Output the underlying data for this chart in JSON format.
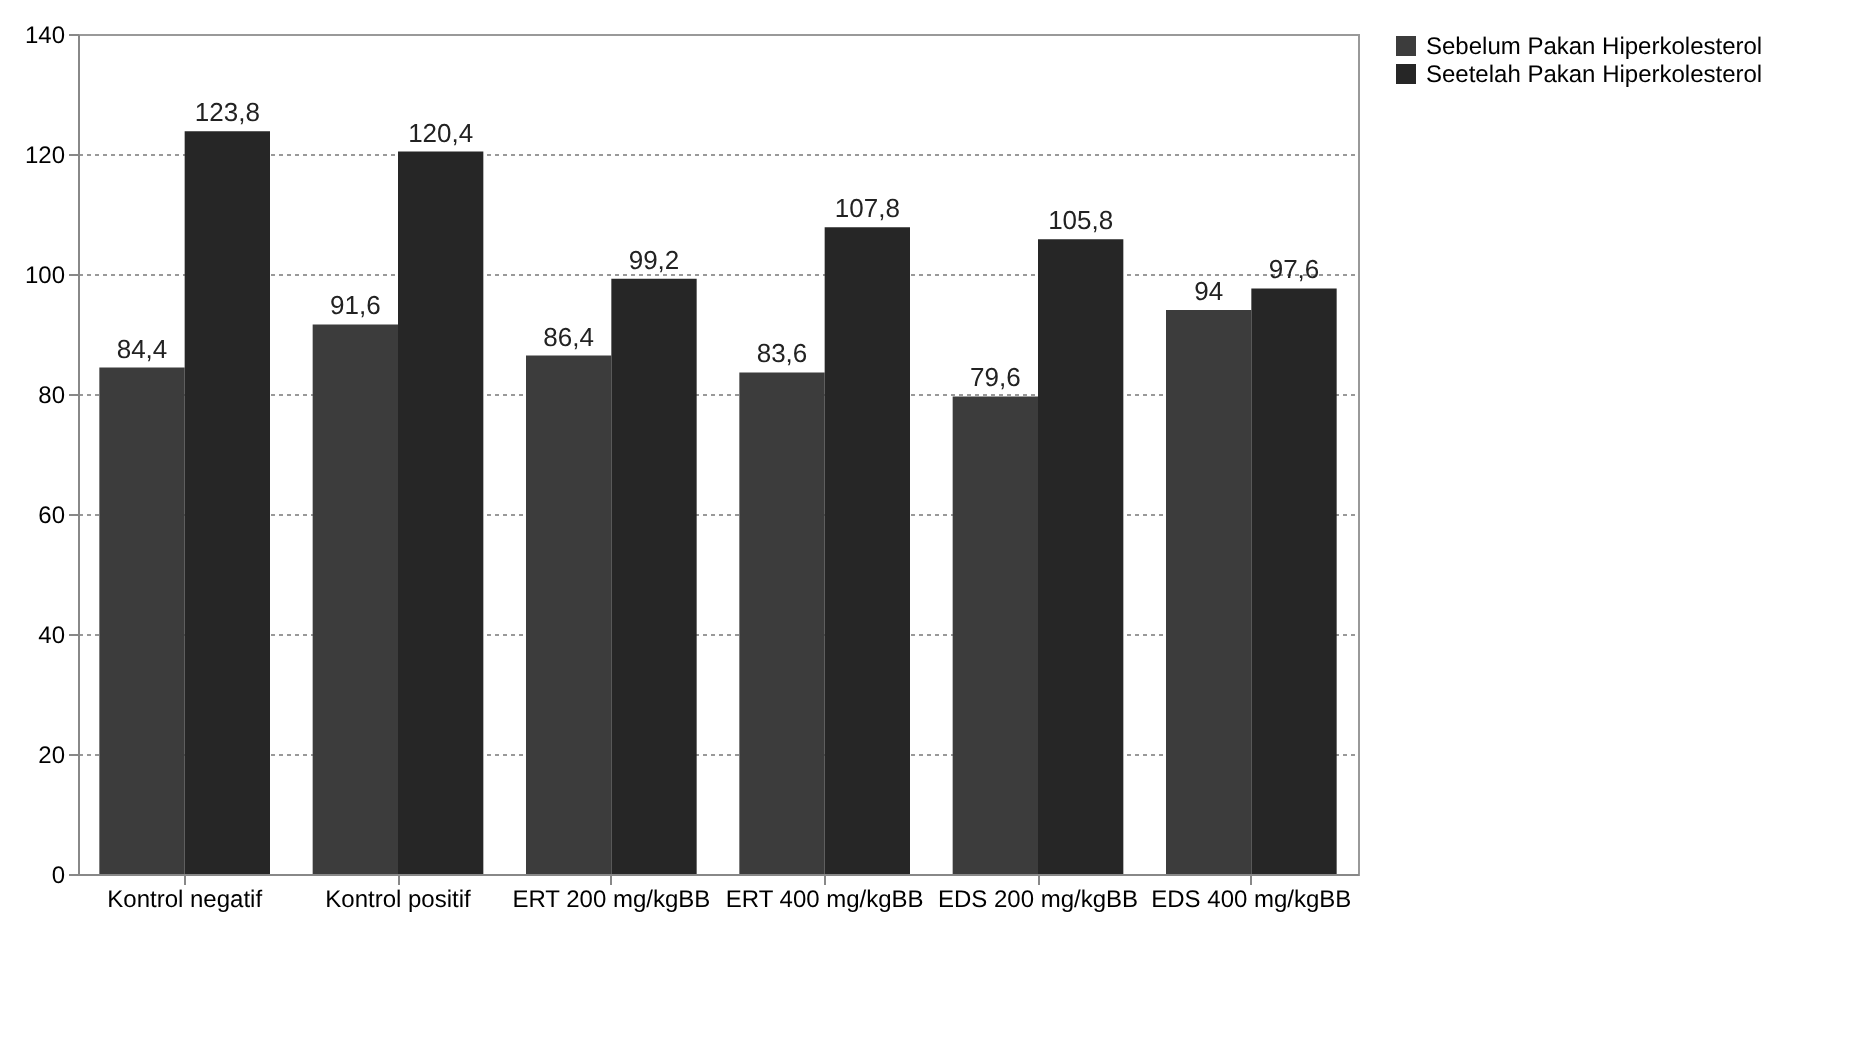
{
  "chart_data": {
    "type": "bar",
    "categories": [
      "Kontrol negatif",
      "Kontrol positif",
      "ERT 200 mg/kgBB",
      "ERT 400 mg/kgBB",
      "EDS 200 mg/kgBB",
      "EDS 400 mg/kgBB"
    ],
    "series": [
      {
        "name": "Sebelum Pakan Hiperkolesterol",
        "color": "#3c3c3c",
        "values": [
          84.4,
          91.6,
          86.4,
          83.6,
          79.6,
          94
        ],
        "value_labels": [
          "84,4",
          "91,6",
          "86,4",
          "83,6",
          "79,6",
          "94"
        ]
      },
      {
        "name": "Seetelah Pakan Hiperkolesterol",
        "color": "#262626",
        "values": [
          123.8,
          120.4,
          99.2,
          107.8,
          105.8,
          97.6
        ],
        "value_labels": [
          "123,8",
          "120,4",
          "99,2",
          "107,8",
          "105,8",
          "97,6"
        ]
      }
    ],
    "ylim": [
      0,
      140
    ],
    "yticks": [
      0,
      20,
      40,
      60,
      80,
      100,
      120,
      140
    ],
    "grid": "y",
    "legend": "right"
  }
}
